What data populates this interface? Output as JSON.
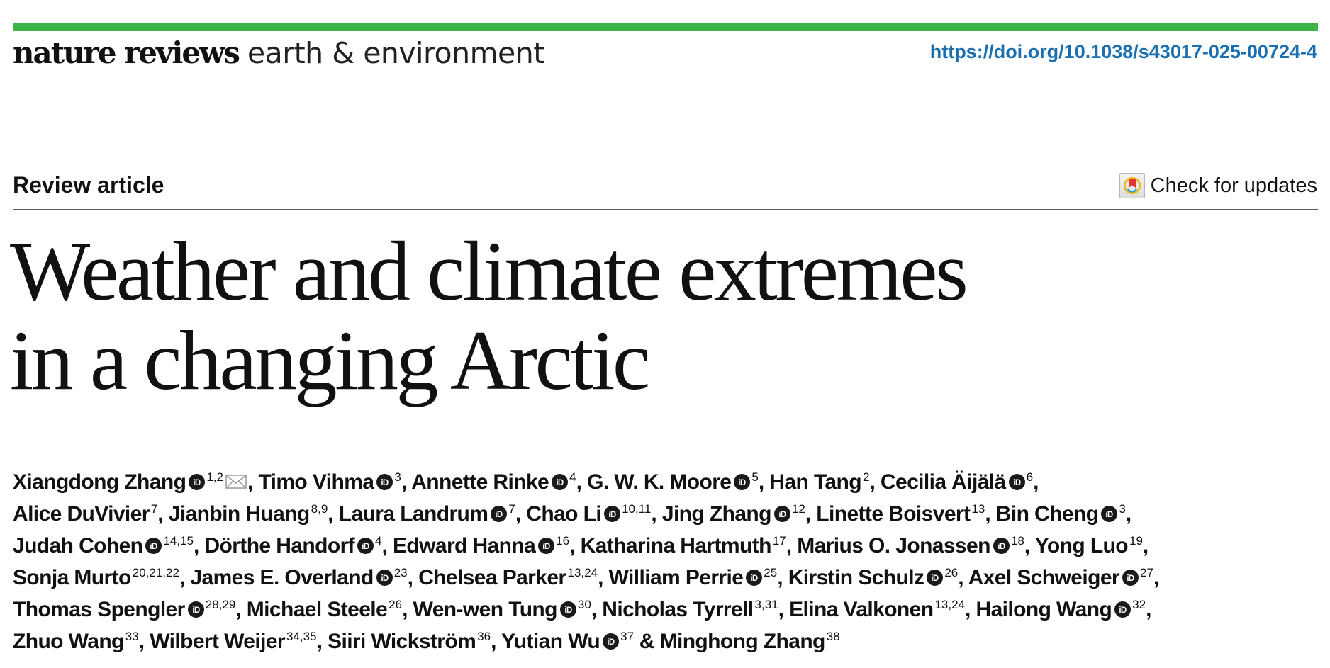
{
  "header": {
    "brand_bar_color": "#3fb549",
    "journal_nature": "nature reviews",
    "journal_section": "earth & environment",
    "doi": "https://doi.org/10.1038/s43017-025-00724-4",
    "link_color": "#1a6fb0"
  },
  "article": {
    "type": "Review article",
    "check_updates_label": "Check for updates",
    "check_updates_icon": "crossmark-icon",
    "title_lines": [
      "Weather and climate extremes",
      "in a changing Arctic"
    ],
    "authors": [
      [
        {
          "name": "Xiangdong Zhang",
          "orcid": true,
          "aff": "1,2",
          "mail": true
        },
        {
          "name": "Timo Vihma",
          "orcid": true,
          "aff": "3"
        },
        {
          "name": "Annette Rinke",
          "orcid": true,
          "aff": "4"
        },
        {
          "name": "G. W. K. Moore",
          "orcid": true,
          "aff": "5"
        },
        {
          "name": "Han Tang",
          "orcid": false,
          "aff": "2"
        },
        {
          "name": "Cecilia Äijälä",
          "orcid": true,
          "aff": "6"
        }
      ],
      [
        {
          "name": "Alice DuVivier",
          "orcid": false,
          "aff": "7"
        },
        {
          "name": "Jianbin Huang",
          "orcid": false,
          "aff": "8,9"
        },
        {
          "name": "Laura Landrum",
          "orcid": true,
          "aff": "7"
        },
        {
          "name": "Chao Li",
          "orcid": true,
          "aff": "10,11"
        },
        {
          "name": "Jing Zhang",
          "orcid": true,
          "aff": "12"
        },
        {
          "name": "Linette Boisvert",
          "orcid": false,
          "aff": "13"
        },
        {
          "name": "Bin Cheng",
          "orcid": true,
          "aff": "3"
        }
      ],
      [
        {
          "name": "Judah Cohen",
          "orcid": true,
          "aff": "14,15"
        },
        {
          "name": "Dörthe Handorf",
          "orcid": true,
          "aff": "4"
        },
        {
          "name": "Edward Hanna",
          "orcid": true,
          "aff": "16"
        },
        {
          "name": "Katharina Hartmuth",
          "orcid": false,
          "aff": "17"
        },
        {
          "name": "Marius O. Jonassen",
          "orcid": true,
          "aff": "18"
        },
        {
          "name": "Yong Luo",
          "orcid": false,
          "aff": "19"
        }
      ],
      [
        {
          "name": "Sonja Murto",
          "orcid": false,
          "aff": "20,21,22"
        },
        {
          "name": "James E. Overland",
          "orcid": true,
          "aff": "23"
        },
        {
          "name": "Chelsea Parker",
          "orcid": false,
          "aff": "13,24"
        },
        {
          "name": "William Perrie",
          "orcid": true,
          "aff": "25"
        },
        {
          "name": "Kirstin Schulz",
          "orcid": true,
          "aff": "26"
        },
        {
          "name": "Axel Schweiger",
          "orcid": true,
          "aff": "27"
        }
      ],
      [
        {
          "name": "Thomas Spengler",
          "orcid": true,
          "aff": "28,29"
        },
        {
          "name": "Michael Steele",
          "orcid": false,
          "aff": "26"
        },
        {
          "name": "Wen-wen Tung",
          "orcid": true,
          "aff": "30"
        },
        {
          "name": "Nicholas Tyrrell",
          "orcid": false,
          "aff": "3,31"
        },
        {
          "name": "Elina Valkonen",
          "orcid": false,
          "aff": "13,24"
        },
        {
          "name": "Hailong Wang",
          "orcid": true,
          "aff": "32"
        }
      ],
      [
        {
          "name": "Zhuo Wang",
          "orcid": false,
          "aff": "33"
        },
        {
          "name": "Wilbert Weijer",
          "orcid": false,
          "aff": "34,35"
        },
        {
          "name": "Siiri Wickström",
          "orcid": false,
          "aff": "36"
        },
        {
          "name": "Yutian Wu",
          "orcid": true,
          "aff": "37"
        },
        {
          "name": "Minghong Zhang",
          "orcid": false,
          "aff": "38"
        }
      ]
    ],
    "separator": ", ",
    "final_separator": " & "
  }
}
